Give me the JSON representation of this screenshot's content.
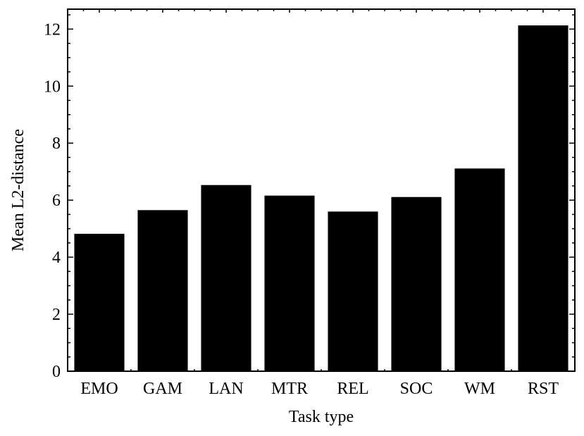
{
  "chart_data": {
    "type": "bar",
    "xlabel": "Task type",
    "ylabel": "Mean L2-distance",
    "categories": [
      "EMO",
      "GAM",
      "LAN",
      "MTR",
      "REL",
      "SOC",
      "WM",
      "RST"
    ],
    "values": [
      4.82,
      5.65,
      6.53,
      6.16,
      5.6,
      6.11,
      7.11,
      12.13
    ],
    "ylim": [
      0,
      12.7
    ],
    "yticks": [
      0,
      2,
      4,
      6,
      8,
      10,
      12
    ],
    "grid": false,
    "bar_color": "#000000"
  }
}
